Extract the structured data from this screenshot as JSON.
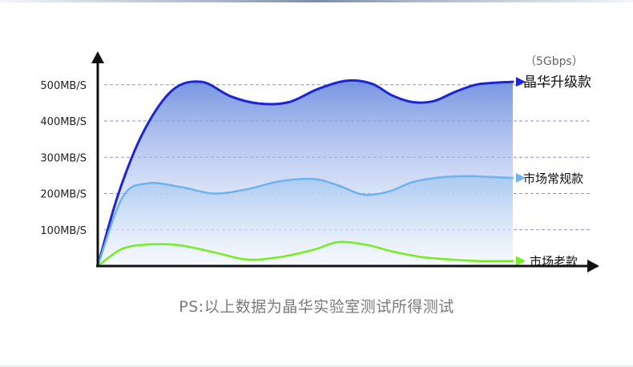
{
  "chart_data": {
    "type": "area",
    "y_ticks": [
      "100MB/S",
      "200MB/S",
      "300MB/S",
      "400MB/S",
      "500MB/S"
    ],
    "y_tick_values": [
      100,
      200,
      300,
      400,
      500
    ],
    "ylim": [
      0,
      560
    ],
    "xlim": [
      0,
      1
    ],
    "grid": true,
    "series": [
      {
        "name": "晶华升级款",
        "sublabel": "（5Gbps）",
        "color": "#1c24d6",
        "fill": true,
        "fill_color": "#7f9fe4",
        "x": [
          0,
          0.05,
          0.11,
          0.18,
          0.25,
          0.32,
          0.39,
          0.46,
          0.53,
          0.6,
          0.66,
          0.71,
          0.76,
          0.81,
          0.86,
          0.91,
          0.95,
          1.0
        ],
        "values": [
          0,
          200,
          370,
          485,
          508,
          468,
          448,
          452,
          488,
          511,
          503,
          470,
          452,
          455,
          480,
          500,
          505,
          508
        ]
      },
      {
        "name": "市场常规款",
        "color": "#6fb2ee",
        "fill": true,
        "fill_color": "#b7d2f1",
        "x": [
          0,
          0.06,
          0.12,
          0.2,
          0.28,
          0.36,
          0.44,
          0.52,
          0.58,
          0.64,
          0.7,
          0.76,
          0.83,
          0.89,
          0.94,
          1.0
        ],
        "values": [
          0,
          190,
          228,
          218,
          200,
          212,
          234,
          240,
          222,
          197,
          205,
          232,
          245,
          248,
          246,
          243
        ]
      },
      {
        "name": "市场老款",
        "color": "#74ee22",
        "fill": false,
        "x": [
          0,
          0.06,
          0.13,
          0.2,
          0.28,
          0.36,
          0.44,
          0.52,
          0.58,
          0.65,
          0.71,
          0.78,
          0.85,
          0.92,
          1.0
        ],
        "values": [
          0,
          48,
          60,
          57,
          38,
          18,
          25,
          45,
          66,
          58,
          40,
          25,
          18,
          14,
          14
        ]
      }
    ]
  },
  "footer_note": "PS:以上数据为晶华实验室测试所得测试"
}
